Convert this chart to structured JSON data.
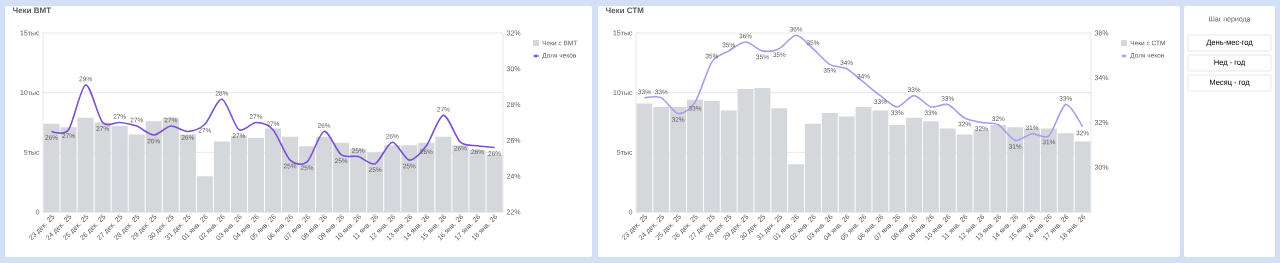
{
  "chart_data": [
    {
      "type": "bar",
      "title": "Чеки ВМТ",
      "categories": [
        "23 дек. 25",
        "24 дек. 25",
        "25 дек. 25",
        "26 дек. 25",
        "27 дек. 25",
        "28 дек. 25",
        "29 дек. 25",
        "30 дек. 25",
        "31 дек. 25",
        "01 янв. 26",
        "02 янв. 26",
        "03 янв. 26",
        "04 янв. 26",
        "05 янв. 26",
        "06 янв. 26",
        "07 янв. 26",
        "08 янв. 26",
        "09 янв. 26",
        "10 янв. 26",
        "11 янв. 26",
        "12 янв. 26",
        "13 янв. 26",
        "14 янв. 26",
        "15 янв. 26",
        "16 янв. 26",
        "17 янв. 26",
        "18 янв. 26"
      ],
      "series": [
        {
          "name": "Чеки с ВМТ",
          "type": "bar",
          "color": "#d4d7dc",
          "values": [
            7.4,
            7.1,
            7.9,
            7.5,
            7.2,
            6.5,
            7.6,
            7.9,
            6.5,
            3.0,
            5.9,
            6.4,
            6.2,
            7.0,
            6.3,
            5.5,
            6.3,
            5.8,
            5.3,
            5.0,
            5.6,
            5.6,
            5.8,
            6.3,
            5.6,
            5.2,
            4.8
          ]
        },
        {
          "name": "Доля чеков",
          "type": "line",
          "axis": "y2",
          "color": "#7b4fd6",
          "values": [
            26.5,
            26.6,
            29.1,
            27,
            27,
            26.8,
            26.3,
            26.8,
            26.5,
            26.9,
            28.3,
            26.6,
            27,
            26.6,
            24.9,
            24.8,
            26.5,
            25.2,
            25.1,
            24.7,
            25.9,
            24.9,
            25.7,
            27.4,
            25.9,
            25.7,
            25.6
          ],
          "value_labels": [
            "26%",
            "27%",
            "29%",
            "27%",
            "27%",
            "27%",
            "26%",
            "27%",
            "26%",
            "27%",
            "28%",
            "27%",
            "27%",
            "27%",
            "25%",
            "25%",
            "26%",
            "25%",
            "25%",
            "25%",
            "26%",
            "25%",
            "26%",
            "27%",
            "26%",
            "26%",
            "26%"
          ]
        }
      ],
      "ylim": [
        0,
        15
      ],
      "yticks": [
        0,
        {
          "value": 5,
          "label": "5тыс"
        },
        {
          "value": 10,
          "label": "10тыс"
        },
        {
          "value": 15,
          "label": "15тыс"
        }
      ],
      "y2lim": [
        22,
        32
      ],
      "y2ticks": [
        {
          "value": 22,
          "label": "22%"
        },
        {
          "value": 24,
          "label": "24%"
        },
        {
          "value": 26,
          "label": "26%"
        },
        {
          "value": 28,
          "label": "28%"
        },
        {
          "value": 30,
          "label": "30%"
        },
        {
          "value": 32,
          "label": "32%"
        }
      ],
      "grid": "y",
      "legend": "right"
    },
    {
      "type": "bar",
      "title": "Чеки СТМ",
      "categories": [
        "23 дек. 25",
        "24 дек. 25",
        "25 дек. 25",
        "26 дек. 25",
        "27 дек. 25",
        "28 дек. 25",
        "29 дек. 25",
        "30 дек. 25",
        "31 дек. 25",
        "01 янв. 26",
        "02 янв. 26",
        "03 янв. 26",
        "04 янв. 26",
        "05 янв. 26",
        "06 янв. 26",
        "07 янв. 26",
        "08 янв. 26",
        "09 янв. 26",
        "10 янв. 26",
        "11 янв. 26",
        "12 янв. 26",
        "13 янв. 26",
        "14 янв. 26",
        "15 янв. 26",
        "16 янв. 26",
        "17 янв. 26",
        "18 янв. 26"
      ],
      "series": [
        {
          "name": "Чеки с СТМ",
          "type": "bar",
          "color": "#d4d7dc",
          "values": [
            9.1,
            8.8,
            8.8,
            9.4,
            9.3,
            8.5,
            10.3,
            10.4,
            8.7,
            4.0,
            7.4,
            8.3,
            8.0,
            8.8,
            8.5,
            7.3,
            7.9,
            7.6,
            7.0,
            6.5,
            6.9,
            7.3,
            7.1,
            7.0,
            7.0,
            6.6,
            5.9
          ]
        },
        {
          "name": "Доля чеков",
          "type": "line",
          "axis": "y2",
          "color": "#a99cf0",
          "values": [
            33.1,
            33.1,
            32.4,
            32.9,
            34.7,
            35.2,
            35.6,
            35.2,
            35.3,
            35.9,
            35.3,
            34.6,
            34.4,
            33.8,
            33.2,
            32.7,
            33.2,
            32.7,
            32.8,
            32.2,
            32,
            31.9,
            31.2,
            31.5,
            31.4,
            32.8,
            31.8
          ],
          "value_labels": [
            "33%",
            "33%",
            "32%",
            "33%",
            "35%",
            "35%",
            "36%",
            "35%",
            "35%",
            "36%",
            "35%",
            "35%",
            "34%",
            "34%",
            "33%",
            "33%",
            "33%",
            "33%",
            "33%",
            "32%",
            "32%",
            "32%",
            "31%",
            "31%",
            "31%",
            "33%",
            "32%"
          ]
        }
      ],
      "ylim": [
        0,
        15
      ],
      "yticks": [
        0,
        {
          "value": 5,
          "label": "5тыс"
        },
        {
          "value": 10,
          "label": "10тыс"
        },
        {
          "value": 15,
          "label": "15тыс"
        }
      ],
      "y2lim": [
        28,
        36
      ],
      "y2ticks": [
        {
          "value": 30,
          "label": "30%"
        },
        {
          "value": 32,
          "label": "32%"
        },
        {
          "value": 34,
          "label": "34%"
        },
        {
          "value": 36,
          "label": "36%"
        }
      ],
      "grid": "y",
      "legend": "right"
    },
    {
      "type": "other",
      "title": "Шаг периода",
      "annotations": [
        "День-мес-год",
        "Нед - год",
        "Месяц - год"
      ]
    }
  ]
}
